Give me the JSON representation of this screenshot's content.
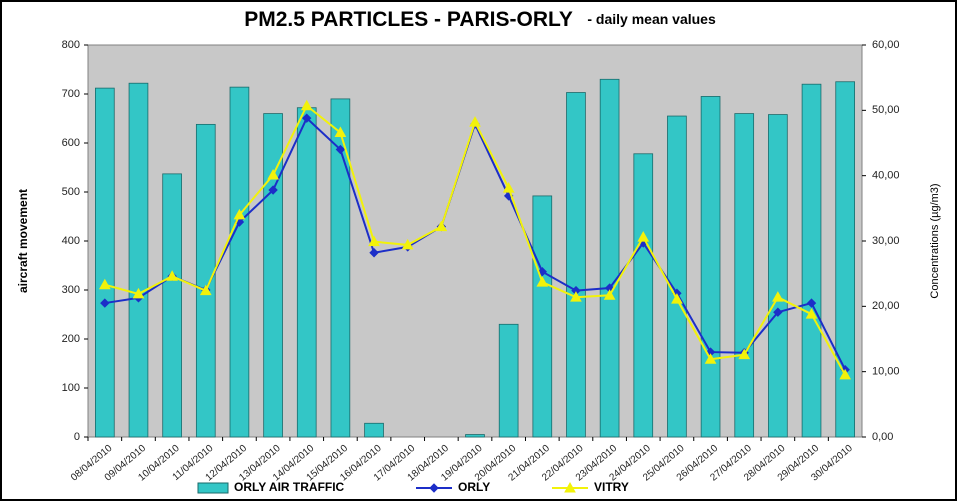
{
  "chart_data": {
    "type": "bar",
    "title": "PM2.5 PARTICLES -  PARIS-ORLY",
    "subtitle": "- daily mean values",
    "y_label": "aircraft  movement",
    "y2_label": "Concentrations (µg/m3)",
    "categories": [
      "08/04/2010",
      "09/04/2010",
      "10/04/2010",
      "11/04/2010",
      "12/04/2010",
      "13/04/2010",
      "14/04/2010",
      "15/04/2010",
      "16/04/2010",
      "17/04/2010",
      "18/04/2010",
      "19/04/2010",
      "20/04/2010",
      "21/04/2010",
      "22/04/2010",
      "23/04/2010",
      "24/04/2010",
      "25/04/2010",
      "26/04/2010",
      "27/04/2010",
      "28/04/2010",
      "29/04/2010",
      "30/04/2010"
    ],
    "series": [
      {
        "name": "ORLY AIR TRAFFIC",
        "type": "bar",
        "axis": "y",
        "color": "#33c6c6",
        "values": [
          712,
          722,
          537,
          638,
          714,
          660,
          672,
          690,
          28,
          0,
          0,
          5,
          230,
          492,
          703,
          730,
          578,
          655,
          695,
          660,
          658,
          720,
          725
        ]
      },
      {
        "name": "ORLY",
        "type": "line",
        "axis": "y2",
        "color": "#1c2ec8",
        "marker": "diamond",
        "values": [
          20.5,
          21.3,
          24.6,
          22.5,
          32.9,
          37.8,
          48.8,
          44,
          28.2,
          29.1,
          32.2,
          47.9,
          36.9,
          25.3,
          22.4,
          22.8,
          29.7,
          22,
          13,
          12.9,
          19.1,
          20.5,
          10.3
        ]
      },
      {
        "name": "VITRY",
        "type": "line",
        "axis": "y2",
        "color": "#f2f20a",
        "marker": "triangle",
        "values": [
          23.3,
          21.9,
          24.6,
          22.4,
          34,
          40.1,
          50.7,
          46.6,
          29.9,
          29.4,
          32.2,
          48.2,
          38.1,
          23.7,
          21.4,
          21.7,
          30.6,
          21.1,
          11.9,
          12.6,
          21.4,
          18.8,
          9.5
        ]
      }
    ],
    "ylim": [
      0,
      800
    ],
    "yticks": [
      0,
      100,
      200,
      300,
      400,
      500,
      600,
      700,
      800
    ],
    "y2lim": [
      0,
      60
    ],
    "y2ticks": [
      {
        "value": 0,
        "label": "0,00"
      },
      {
        "value": 10,
        "label": "10,00"
      },
      {
        "value": 20,
        "label": "20,00"
      },
      {
        "value": 30,
        "label": "30,00"
      },
      {
        "value": 40,
        "label": "40,00"
      },
      {
        "value": 50,
        "label": "50,00"
      },
      {
        "value": 60,
        "label": "60,00"
      }
    ],
    "grid": false,
    "legend": "bottom",
    "plot_background": "#c8c8c8"
  }
}
